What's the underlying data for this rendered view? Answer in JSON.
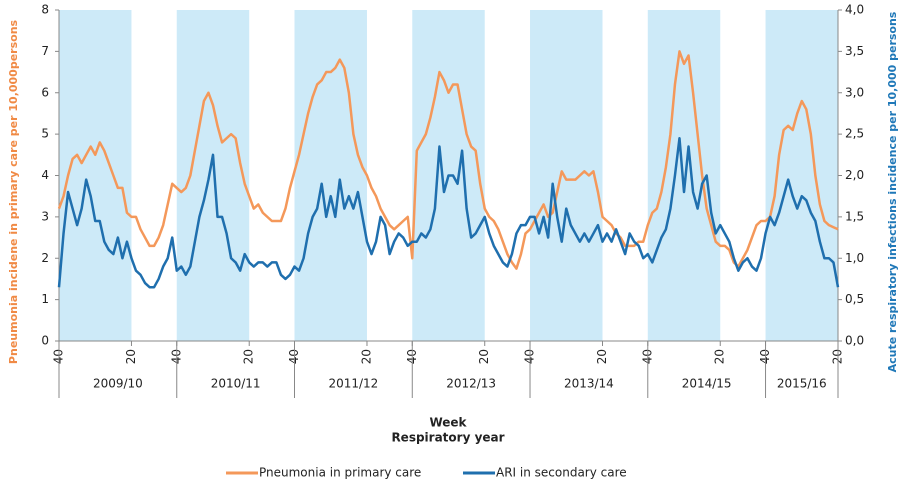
{
  "chart_data": {
    "type": "line",
    "ylabel": "Pneumonia incidene in primary care per 10,000persons",
    "y2label": "Acute respiratory infections incidence per 10,000 persons",
    "xlabel": "Week",
    "group_label": "Respiratory year",
    "legend": "bottom",
    "shade_color": "#cdeaf8",
    "year_groups": [
      "2009/10",
      "2010/11",
      "2011/12",
      "2012/13",
      "2013/14",
      "2014/15",
      "2015/16"
    ],
    "xlim": [
      0,
      344
    ],
    "xticks": [
      {
        "value": 0,
        "label": "40"
      },
      {
        "value": 32,
        "label": "20"
      },
      {
        "value": 52,
        "label": "40"
      },
      {
        "value": 84,
        "label": "20"
      },
      {
        "value": 104,
        "label": "40"
      },
      {
        "value": 136,
        "label": "20"
      },
      {
        "value": 156,
        "label": "40"
      },
      {
        "value": 188,
        "label": "20"
      },
      {
        "value": 208,
        "label": "40"
      },
      {
        "value": 240,
        "label": "20"
      },
      {
        "value": 260,
        "label": "40"
      },
      {
        "value": 292,
        "label": "20"
      },
      {
        "value": 312,
        "label": "40"
      },
      {
        "value": 344,
        "label": "20"
      }
    ],
    "ylim": [
      0,
      8
    ],
    "yticks": [
      0,
      1,
      2,
      3,
      4,
      5,
      6,
      7,
      8
    ],
    "y2lim": [
      0,
      4
    ],
    "y2ticks": [
      {
        "value": 0,
        "label": "0,0"
      },
      {
        "value": 0.5,
        "label": "0,5"
      },
      {
        "value": 1,
        "label": "1,0"
      },
      {
        "value": 1.5,
        "label": "1,5"
      },
      {
        "value": 2,
        "label": "2,0"
      },
      {
        "value": 2.5,
        "label": "2,5"
      },
      {
        "value": 3,
        "label": "3,0"
      },
      {
        "value": 3.5,
        "label": "3,5"
      },
      {
        "value": 4,
        "label": "4,0"
      }
    ],
    "x": [
      0,
      2,
      4,
      6,
      8,
      10,
      12,
      14,
      16,
      18,
      20,
      22,
      24,
      26,
      28,
      30,
      32,
      34,
      36,
      38,
      40,
      42,
      44,
      46,
      48,
      50,
      52,
      54,
      56,
      58,
      60,
      62,
      64,
      66,
      68,
      70,
      72,
      74,
      76,
      78,
      80,
      82,
      84,
      86,
      88,
      90,
      92,
      94,
      96,
      98,
      100,
      102,
      104,
      106,
      108,
      110,
      112,
      114,
      116,
      118,
      120,
      122,
      124,
      126,
      128,
      130,
      132,
      134,
      136,
      138,
      140,
      142,
      144,
      146,
      148,
      150,
      152,
      154,
      156,
      158,
      160,
      162,
      164,
      166,
      168,
      170,
      172,
      174,
      176,
      178,
      180,
      182,
      184,
      186,
      188,
      190,
      192,
      194,
      196,
      198,
      200,
      202,
      204,
      206,
      208,
      210,
      212,
      214,
      216,
      218,
      220,
      222,
      224,
      226,
      228,
      230,
      232,
      234,
      236,
      238,
      240,
      242,
      244,
      246,
      248,
      250,
      252,
      254,
      256,
      258,
      260,
      262,
      264,
      266,
      268,
      270,
      272,
      274,
      276,
      278,
      280,
      282,
      284,
      286,
      288,
      290,
      292,
      294,
      296,
      298,
      300,
      302,
      304,
      306,
      308,
      310,
      312,
      314,
      316,
      318,
      320,
      322,
      324,
      326,
      328,
      330,
      332,
      334,
      336,
      338,
      340,
      342,
      344
    ],
    "series": [
      {
        "name": "Pneumonia in primary care",
        "color": "#f4985a",
        "axis": "y",
        "values": [
          3.2,
          3.5,
          4.0,
          4.4,
          4.5,
          4.3,
          4.5,
          4.7,
          4.5,
          4.8,
          4.6,
          4.3,
          4.0,
          3.7,
          3.7,
          3.1,
          3.0,
          3.0,
          2.7,
          2.5,
          2.3,
          2.3,
          2.5,
          2.8,
          3.3,
          3.8,
          3.7,
          3.6,
          3.7,
          4.0,
          4.6,
          5.2,
          5.8,
          6.0,
          5.7,
          5.2,
          4.8,
          4.9,
          5.0,
          4.9,
          4.3,
          3.8,
          3.5,
          3.2,
          3.3,
          3.1,
          3.0,
          2.9,
          2.9,
          2.9,
          3.2,
          3.7,
          4.1,
          4.5,
          5.0,
          5.5,
          5.9,
          6.2,
          6.3,
          6.5,
          6.5,
          6.6,
          6.8,
          6.6,
          6.0,
          5.0,
          4.5,
          4.2,
          4.0,
          3.7,
          3.5,
          3.2,
          3.0,
          2.8,
          2.7,
          2.8,
          2.9,
          3.0,
          2.0,
          4.6,
          4.8,
          5.0,
          5.4,
          5.9,
          6.5,
          6.3,
          6.0,
          6.2,
          6.2,
          5.6,
          5.0,
          4.7,
          4.6,
          3.8,
          3.2,
          3.0,
          2.9,
          2.7,
          2.4,
          2.1,
          1.9,
          1.75,
          2.1,
          2.6,
          2.7,
          2.9,
          3.1,
          3.3,
          3.0,
          3.1,
          3.6,
          4.1,
          3.9,
          3.9,
          3.9,
          4.0,
          4.1,
          4.0,
          4.1,
          3.6,
          3.0,
          2.9,
          2.8,
          2.6,
          2.5,
          2.3,
          2.3,
          2.3,
          2.4,
          2.4,
          2.8,
          3.1,
          3.2,
          3.6,
          4.2,
          5.0,
          6.2,
          7.0,
          6.7,
          6.9,
          6.0,
          5.0,
          4.0,
          3.2,
          2.8,
          2.4,
          2.3,
          2.3,
          2.2,
          1.9,
          1.8,
          2.0,
          2.2,
          2.5,
          2.8,
          2.9,
          2.9,
          3.0,
          3.5,
          4.5,
          5.1,
          5.2,
          5.1,
          5.5,
          5.8,
          5.6,
          5.0,
          4.0,
          3.3,
          2.9,
          2.8,
          2.75,
          2.7
        ]
      },
      {
        "name": "ARI in secondary care",
        "color": "#1f6fae",
        "axis": "y2",
        "values": [
          0.65,
          1.3,
          1.8,
          1.6,
          1.4,
          1.6,
          1.95,
          1.75,
          1.45,
          1.45,
          1.2,
          1.1,
          1.05,
          1.25,
          1.0,
          1.2,
          1.0,
          0.85,
          0.8,
          0.7,
          0.65,
          0.65,
          0.75,
          0.9,
          1.0,
          1.25,
          0.85,
          0.9,
          0.8,
          0.9,
          1.2,
          1.5,
          1.7,
          1.95,
          2.25,
          1.5,
          1.5,
          1.3,
          1.0,
          0.95,
          0.85,
          1.05,
          0.95,
          0.9,
          0.95,
          0.95,
          0.9,
          0.95,
          0.95,
          0.8,
          0.75,
          0.8,
          0.9,
          0.85,
          1.0,
          1.3,
          1.5,
          1.6,
          1.9,
          1.5,
          1.75,
          1.5,
          1.95,
          1.6,
          1.75,
          1.6,
          1.8,
          1.5,
          1.2,
          1.05,
          1.2,
          1.5,
          1.4,
          1.05,
          1.2,
          1.3,
          1.25,
          1.15,
          1.2,
          1.2,
          1.3,
          1.25,
          1.35,
          1.6,
          2.35,
          1.8,
          2.0,
          2.0,
          1.9,
          2.3,
          1.6,
          1.25,
          1.3,
          1.4,
          1.5,
          1.3,
          1.15,
          1.05,
          0.95,
          0.9,
          1.05,
          1.3,
          1.4,
          1.4,
          1.5,
          1.5,
          1.3,
          1.5,
          1.25,
          1.9,
          1.5,
          1.2,
          1.6,
          1.4,
          1.3,
          1.2,
          1.3,
          1.2,
          1.3,
          1.4,
          1.2,
          1.3,
          1.2,
          1.35,
          1.2,
          1.05,
          1.3,
          1.2,
          1.15,
          1.0,
          1.05,
          0.95,
          1.1,
          1.25,
          1.35,
          1.6,
          2.0,
          2.45,
          1.8,
          2.35,
          1.8,
          1.6,
          1.9,
          2.0,
          1.55,
          1.3,
          1.4,
          1.3,
          1.2,
          1.0,
          0.85,
          0.95,
          1.0,
          0.9,
          0.85,
          1.0,
          1.3,
          1.5,
          1.4,
          1.55,
          1.75,
          1.95,
          1.75,
          1.6,
          1.75,
          1.7,
          1.55,
          1.45,
          1.2,
          1.0,
          1.0,
          0.95,
          0.65
        ]
      }
    ]
  }
}
